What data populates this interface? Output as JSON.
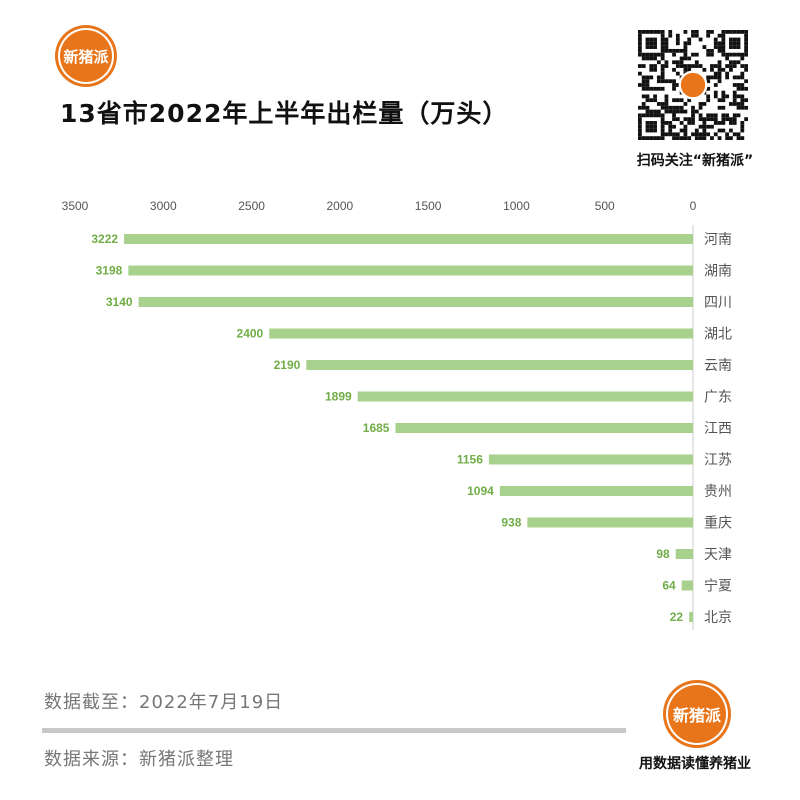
{
  "brand": {
    "logo_text": "新猪派",
    "accent": "#e8751a"
  },
  "header": {
    "title": "13省市2022年上半年出栏量（万头）"
  },
  "qr": {
    "caption": "扫码关注“新猪派”"
  },
  "footer": {
    "date_note": "数据截至：2022年7月19日",
    "source": "数据来源：新猪派整理",
    "slogan": "用数据读懂养猪业"
  },
  "chart_data": {
    "type": "bar",
    "orientation": "horizontal",
    "x_axis_reversed": true,
    "title": "13省市2022年上半年出栏量（万头）",
    "categories": [
      "河南",
      "湖南",
      "四川",
      "湖北",
      "云南",
      "广东",
      "江西",
      "江苏",
      "贵州",
      "重庆",
      "天津",
      "宁夏",
      "北京"
    ],
    "values": [
      3222,
      3198,
      3140,
      2400,
      2190,
      1899,
      1685,
      1156,
      1094,
      938,
      98,
      64,
      22
    ],
    "xlim": [
      0,
      3500
    ],
    "ticks": [
      3500,
      3000,
      2500,
      2000,
      1500,
      1000,
      500,
      0
    ],
    "axis_position": "top",
    "grid": false,
    "bar_color": "#a9d18e",
    "label_color": "#70ad47"
  }
}
